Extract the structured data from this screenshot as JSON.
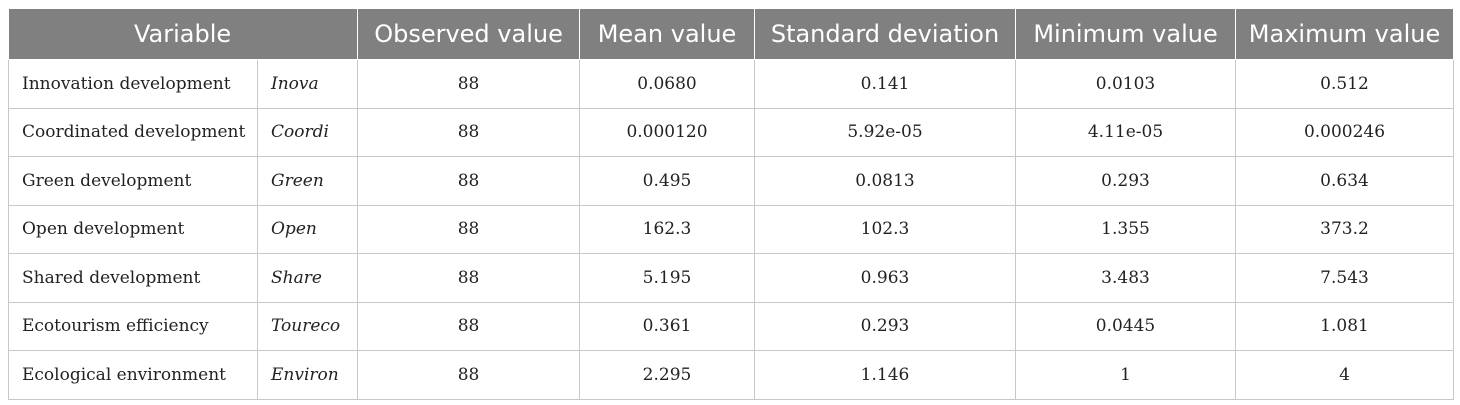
{
  "table": {
    "headers": {
      "variable": "Variable",
      "observed": "Observed value",
      "mean": "Mean value",
      "sd": "Standard deviation",
      "min": "Minimum value",
      "max": "Maximum value"
    },
    "rows": [
      {
        "name": "Innovation development",
        "abbr": "Inova",
        "observed": "88",
        "mean": "0.0680",
        "sd": "0.141",
        "min": "0.0103",
        "max": "0.512"
      },
      {
        "name": "Coordinated development",
        "abbr": "Coordi",
        "observed": "88",
        "mean": "0.000120",
        "sd": "5.92e-05",
        "min": "4.11e-05",
        "max": "0.000246"
      },
      {
        "name": "Green development",
        "abbr": "Green",
        "observed": "88",
        "mean": "0.495",
        "sd": "0.0813",
        "min": "0.293",
        "max": "0.634"
      },
      {
        "name": "Open development",
        "abbr": "Open",
        "observed": "88",
        "mean": "162.3",
        "sd": "102.3",
        "min": "1.355",
        "max": "373.2"
      },
      {
        "name": "Shared development",
        "abbr": "Share",
        "observed": "88",
        "mean": "5.195",
        "sd": "0.963",
        "min": "3.483",
        "max": "7.543"
      },
      {
        "name": "Ecotourism efficiency",
        "abbr": "Toureco",
        "observed": "88",
        "mean": "0.361",
        "sd": "0.293",
        "min": "0.0445",
        "max": "1.081"
      },
      {
        "name": "Ecological environment",
        "abbr": "Environ",
        "observed": "88",
        "mean": "2.295",
        "sd": "1.146",
        "min": "1",
        "max": "4"
      }
    ]
  },
  "colors": {
    "header_bg": "#808080",
    "header_text": "#ffffff",
    "border": "#c8c8c8"
  }
}
